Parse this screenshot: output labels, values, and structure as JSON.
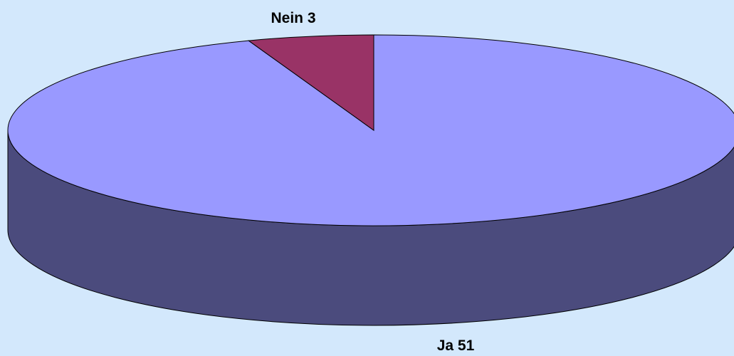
{
  "chart_data": {
    "type": "pie",
    "style": "3d",
    "title": "",
    "legend": "none",
    "slices": [
      {
        "label": "Ja",
        "value": 51,
        "display": "Ja 51",
        "top_color": "#9999ff",
        "side_color": "#4b4b7d"
      },
      {
        "label": "Nein",
        "value": 3,
        "display": "Nein 3",
        "top_color": "#993366",
        "side_color": "#5c1f3d"
      }
    ]
  },
  "colors": {
    "background": "#d3e8fc",
    "outline": "#000000"
  }
}
